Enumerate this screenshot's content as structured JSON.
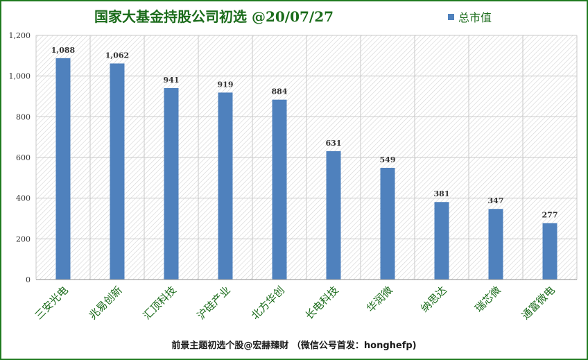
{
  "chart_data": {
    "type": "bar",
    "title": "国家大基金持股公司初选 @20/07/27",
    "categories": [
      "三安光电",
      "兆易创新",
      "汇顶科技",
      "沪硅产业",
      "北方华创",
      "长电科技",
      "华润微",
      "纳思达",
      "瑞芯微",
      "通富微电"
    ],
    "series": [
      {
        "name": "总市值",
        "values": [
          1088,
          1062,
          941,
          919,
          884,
          631,
          549,
          381,
          347,
          277
        ]
      }
    ],
    "data_labels": [
      "1,088",
      "1,062",
      "941",
      "919",
      "884",
      "631",
      "549",
      "381",
      "347",
      "277"
    ],
    "yticks": [
      "0",
      "200",
      "400",
      "600",
      "800",
      "1,000",
      "1,200"
    ],
    "ylim": [
      0,
      1200
    ],
    "grid": true,
    "legend": "top-right",
    "bar_color": "#4f81bd",
    "title_color": "#1a6b1a"
  },
  "footer": "前景主题初选个股@宏赫臻财 （微信公号首发：honghefp)"
}
